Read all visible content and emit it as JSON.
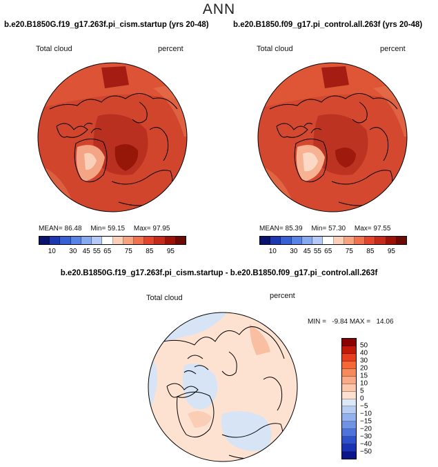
{
  "title": "ANN",
  "colors": {
    "ocean_left": "#c43a25",
    "land_left": "#b73222",
    "ocean_right": "#c73d26",
    "diff_base": "#fde0d0",
    "diff_blue": "#d6e4f6",
    "coast": "#000000"
  },
  "panels": [
    {
      "title": "b.e20.B1850G.f19_g17.263f.pi_cism.startup (yrs 20-48)",
      "variable_label": "Total cloud",
      "units_label": "percent",
      "stats": {
        "mean_label": "MEAN=",
        "mean": "86.48",
        "min_label": "Min=",
        "min": "59.15",
        "max_label": "Max=",
        "max": "97.95"
      }
    },
    {
      "title": "b.e20.B1850.f09_g17.pi_control.all.263f (yrs 20-48)",
      "variable_label": "Total cloud",
      "units_label": "percent",
      "stats": {
        "mean_label": "MEAN=",
        "mean": "85.39",
        "min_label": "Min=",
        "min": "57.30",
        "max_label": "Max=",
        "max": "97.55"
      }
    }
  ],
  "colorbar_top": {
    "colors": [
      "#08136e",
      "#1d38b0",
      "#3760d4",
      "#5784e6",
      "#86a9f0",
      "#b4caf5",
      "#ffffff",
      "#fbd0b8",
      "#f7a37f",
      "#f0724e",
      "#e2452b",
      "#c52a1a",
      "#9c1208",
      "#6e0a04"
    ],
    "ticks": [
      "10",
      "30",
      "45",
      "55",
      "65",
      "75",
      "85",
      "95"
    ]
  },
  "diff": {
    "title": "b.e20.B1850G.f19_g17.263f.pi_cism.startup - b.e20.B1850.f09_g17.pi_control.all.263f",
    "variable_label": "Total cloud",
    "units_label": "percent",
    "minmax": "MIN =   -9.84 MAX =   14.06",
    "colorbar": {
      "colors": [
        "#8b0000",
        "#c21a0a",
        "#e8401f",
        "#f46737",
        "#f78a5d",
        "#f9aa86",
        "#fbc7ad",
        "#fde0d0",
        "#dce8f8",
        "#b8cdf2",
        "#93b1ec",
        "#6f93e4",
        "#4e74db",
        "#2f52cc",
        "#1a32b4",
        "#0a158c"
      ],
      "ticks": [
        "50",
        "40",
        "30",
        "20",
        "15",
        "10",
        "5",
        "0",
        "−5",
        "−10",
        "−15",
        "−20",
        "−30",
        "−40",
        "−50"
      ]
    }
  }
}
